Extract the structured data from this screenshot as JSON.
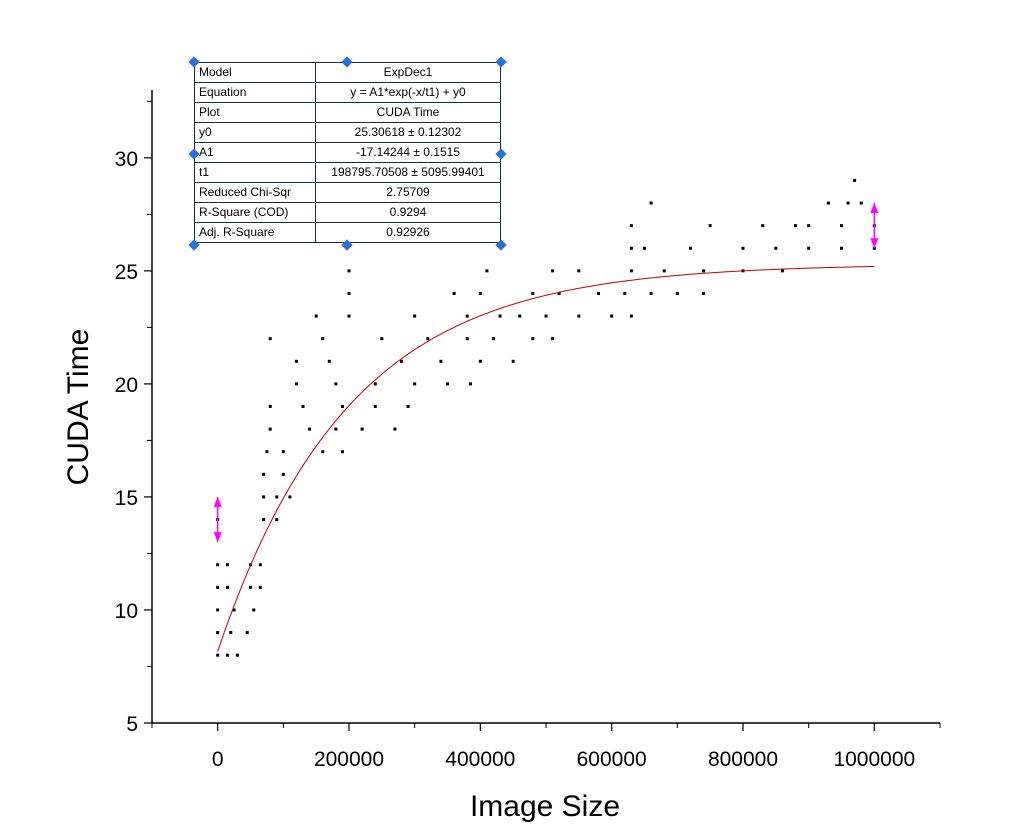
{
  "chart_data": {
    "type": "scatter",
    "xlabel": "Image Size",
    "ylabel": "CUDA Time",
    "xlim": [
      -100000,
      1100000
    ],
    "ylim": [
      5,
      33
    ],
    "xticks": [
      "0",
      "200000",
      "400000",
      "600000",
      "800000",
      "1000000"
    ],
    "yticks": [
      "5",
      "10",
      "15",
      "20",
      "25",
      "30"
    ],
    "series": [
      {
        "points": [
          [
            0,
            8
          ],
          [
            15000,
            8
          ],
          [
            30000,
            8
          ],
          [
            0,
            9
          ],
          [
            20000,
            9
          ],
          [
            45000,
            9
          ],
          [
            0,
            10
          ],
          [
            25000,
            10
          ],
          [
            55000,
            10
          ],
          [
            0,
            11
          ],
          [
            15000,
            11
          ],
          [
            50000,
            11
          ],
          [
            65000,
            11
          ],
          [
            0,
            12
          ],
          [
            15000,
            12
          ],
          [
            50000,
            12
          ],
          [
            65000,
            12
          ],
          [
            0,
            14
          ],
          [
            70000,
            14
          ],
          [
            90000,
            14
          ],
          [
            70000,
            15
          ],
          [
            90000,
            15
          ],
          [
            110000,
            15
          ],
          [
            70000,
            16
          ],
          [
            100000,
            16
          ],
          [
            75000,
            17
          ],
          [
            100000,
            17
          ],
          [
            160000,
            17
          ],
          [
            190000,
            17
          ],
          [
            80000,
            18
          ],
          [
            140000,
            18
          ],
          [
            180000,
            18
          ],
          [
            220000,
            18
          ],
          [
            270000,
            18
          ],
          [
            80000,
            19
          ],
          [
            130000,
            19
          ],
          [
            190000,
            19
          ],
          [
            240000,
            19
          ],
          [
            290000,
            19
          ],
          [
            120000,
            20
          ],
          [
            180000,
            20
          ],
          [
            240000,
            20
          ],
          [
            300000,
            20
          ],
          [
            350000,
            20
          ],
          [
            385000,
            20
          ],
          [
            120000,
            21
          ],
          [
            170000,
            21
          ],
          [
            280000,
            21
          ],
          [
            340000,
            21
          ],
          [
            400000,
            21
          ],
          [
            450000,
            21
          ],
          [
            80000,
            22
          ],
          [
            160000,
            22
          ],
          [
            250000,
            22
          ],
          [
            320000,
            22
          ],
          [
            380000,
            22
          ],
          [
            420000,
            22
          ],
          [
            480000,
            22
          ],
          [
            510000,
            22
          ],
          [
            150000,
            23
          ],
          [
            200000,
            23
          ],
          [
            300000,
            23
          ],
          [
            380000,
            23
          ],
          [
            430000,
            23
          ],
          [
            460000,
            23
          ],
          [
            500000,
            23
          ],
          [
            550000,
            23
          ],
          [
            600000,
            23
          ],
          [
            630000,
            23
          ],
          [
            200000,
            24
          ],
          [
            360000,
            24
          ],
          [
            400000,
            24
          ],
          [
            480000,
            24
          ],
          [
            520000,
            24
          ],
          [
            580000,
            24
          ],
          [
            620000,
            24
          ],
          [
            660000,
            24
          ],
          [
            700000,
            24
          ],
          [
            740000,
            24
          ],
          [
            200000,
            25
          ],
          [
            410000,
            25
          ],
          [
            510000,
            25
          ],
          [
            550000,
            25
          ],
          [
            630000,
            25
          ],
          [
            680000,
            25
          ],
          [
            740000,
            25
          ],
          [
            800000,
            25
          ],
          [
            860000,
            25
          ],
          [
            630000,
            26
          ],
          [
            650000,
            26
          ],
          [
            720000,
            26
          ],
          [
            800000,
            26
          ],
          [
            850000,
            26
          ],
          [
            900000,
            26
          ],
          [
            950000,
            26
          ],
          [
            1000000,
            26
          ],
          [
            630000,
            27
          ],
          [
            750000,
            27
          ],
          [
            830000,
            27
          ],
          [
            880000,
            27
          ],
          [
            900000,
            27
          ],
          [
            950000,
            27
          ],
          [
            1000000,
            27
          ],
          [
            660000,
            28
          ],
          [
            930000,
            28
          ],
          [
            960000,
            28
          ],
          [
            980000,
            28
          ],
          [
            970000,
            29
          ]
        ]
      }
    ],
    "fit": {
      "type": "line",
      "color": "#c00000",
      "model": "y = A1*exp(-x/t1) + y0",
      "y0": 25.30618,
      "A1": -17.14244,
      "t1": 198795.70508,
      "x_range": [
        0,
        1000000
      ]
    },
    "error_arrows": [
      {
        "x": 0,
        "y_low": 13,
        "y_high": 15
      },
      {
        "x": 1000000,
        "y_low": 26,
        "y_high": 28
      }
    ],
    "arrow_color": "#ff00ff",
    "grid": false
  },
  "fit_table": {
    "rows": [
      {
        "key": "Model",
        "value": "ExpDec1"
      },
      {
        "key": "Equation",
        "value": "y = A1*exp(-x/t1) + y0"
      },
      {
        "key": "Plot",
        "value": "CUDA Time"
      },
      {
        "key": "y0",
        "value": "25.30618 ± 0.12302"
      },
      {
        "key": "A1",
        "value": "-17.14244 ± 0.1515"
      },
      {
        "key": "t1",
        "value": "198795.70508 ± 5095.99401"
      },
      {
        "key": "Reduced Chi-Sqr",
        "value": "2.75709"
      },
      {
        "key": "R-Square (COD)",
        "value": "0.9294"
      },
      {
        "key": "Adj. R-Square",
        "value": "0.92926"
      }
    ]
  }
}
